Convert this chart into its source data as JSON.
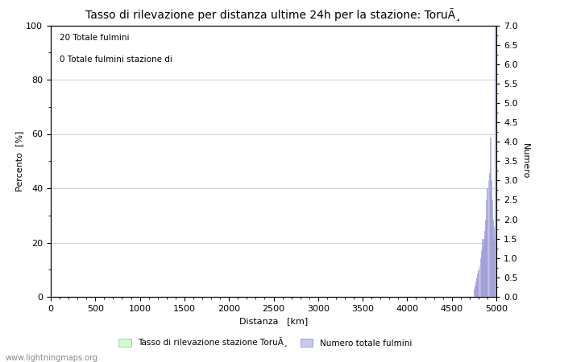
{
  "title": "Tasso di rilevazione per distanza ultime 24h per la stazione: ToruÃ¸",
  "xlabel": "Distanza   [km]",
  "ylabel_left": "Percento  [%]",
  "ylabel_right": "Numero",
  "annotation_line1": "20 Totale fulmini",
  "annotation_line2": "0 Totale fulmini stazione di",
  "xlim": [
    0,
    5000
  ],
  "ylim_left": [
    0,
    100
  ],
  "ylim_right": [
    0,
    7.0
  ],
  "yticks_left": [
    0,
    20,
    40,
    60,
    80,
    100
  ],
  "yticks_right": [
    0.0,
    0.5,
    1.0,
    1.5,
    2.0,
    2.5,
    3.0,
    3.5,
    4.0,
    4.5,
    5.0,
    5.5,
    6.0,
    6.5,
    7.0
  ],
  "xticks": [
    0,
    500,
    1000,
    1500,
    2000,
    2500,
    3000,
    3500,
    4000,
    4500,
    5000
  ],
  "bar_color": "#c8c8f0",
  "bar_edge_color": "#8888cc",
  "background_color": "#ffffff",
  "grid_color": "#bbbbbb",
  "watermark": "www.lightningmaps.org",
  "legend_label1": "Tasso di rilevazione stazione ToruÃ¸",
  "legend_label2": "Numero totale fulmini",
  "legend_color1": "#ccffcc",
  "legend_color2": "#c8c8f0",
  "bar_distances": [
    4750,
    4760,
    4770,
    4780,
    4790,
    4800,
    4810,
    4820,
    4830,
    4840,
    4850,
    4860,
    4870,
    4880,
    4890,
    4900,
    4910,
    4920,
    4930,
    4940,
    4950,
    4960,
    4970,
    4980,
    4990,
    5000
  ],
  "bar_values": [
    0.2,
    0.3,
    0.4,
    0.5,
    0.6,
    0.7,
    0.8,
    1.0,
    1.2,
    1.5,
    1.3,
    1.5,
    1.7,
    2.0,
    2.5,
    2.8,
    3.0,
    3.2,
    4.1,
    3.0,
    2.5,
    2.0,
    1.5,
    1.8,
    7.0,
    6.1
  ],
  "title_fontsize": 10,
  "label_fontsize": 8,
  "tick_fontsize": 8
}
